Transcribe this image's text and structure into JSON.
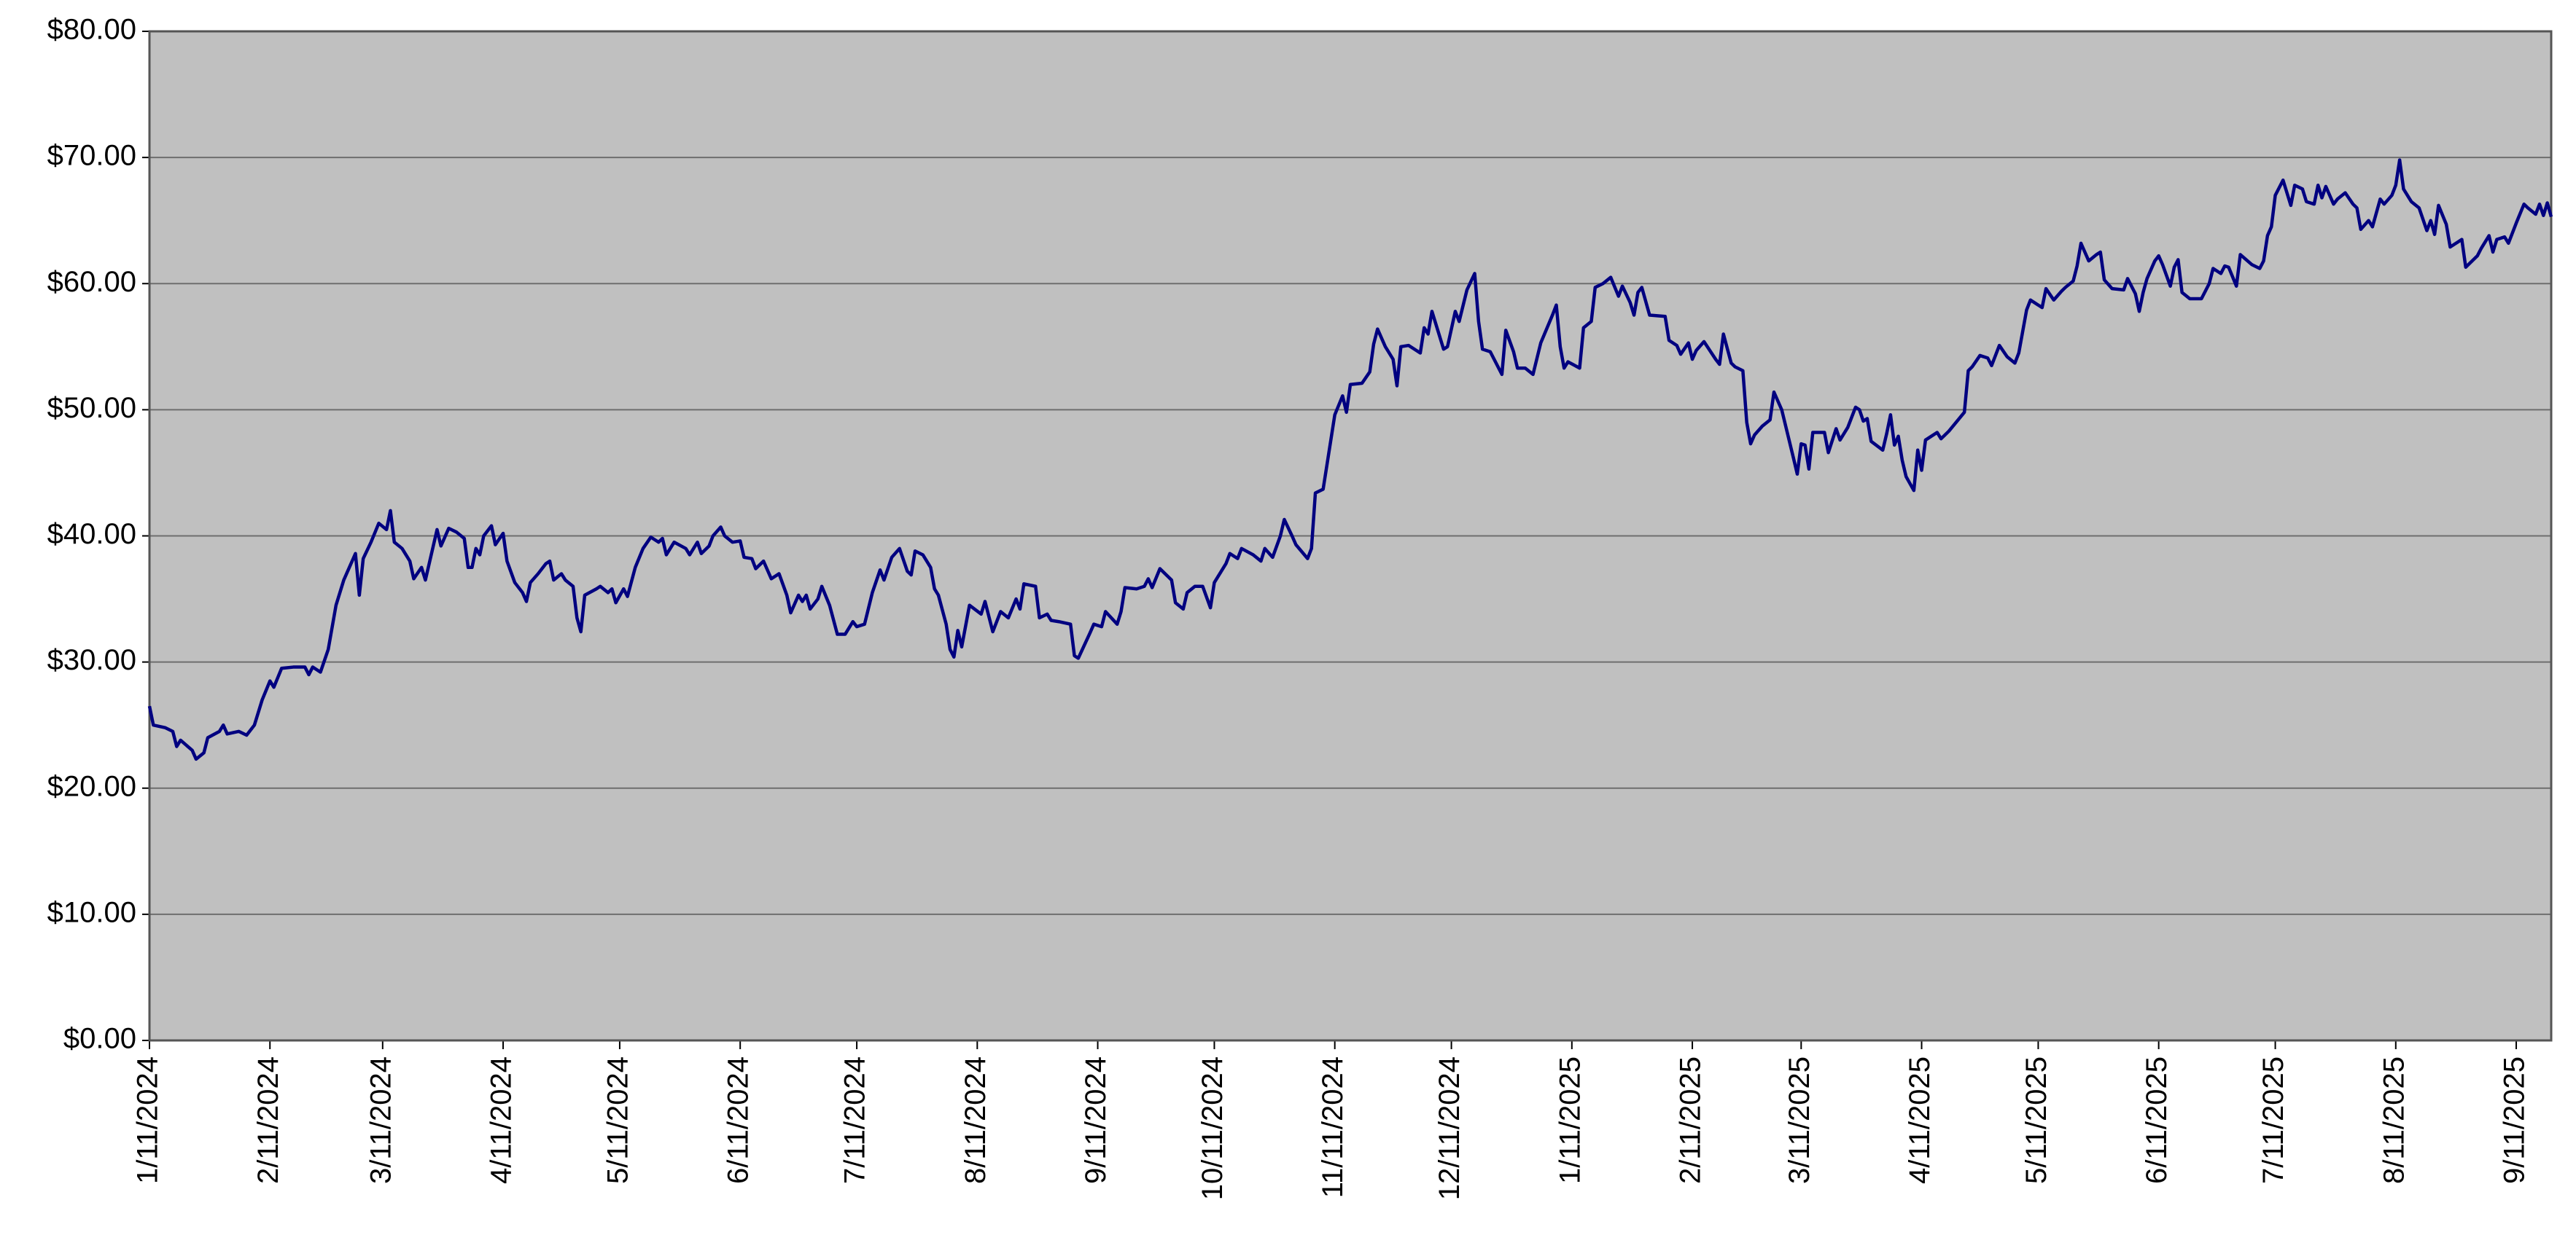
{
  "chart_data": {
    "type": "line",
    "color": "#000080",
    "plot_background": "#c0c0c0",
    "grid": true,
    "ylim": [
      0,
      80
    ],
    "yticks": [
      {
        "value": 0,
        "label": "$0.00"
      },
      {
        "value": 10,
        "label": "$10.00"
      },
      {
        "value": 20,
        "label": "$20.00"
      },
      {
        "value": 30,
        "label": "$30.00"
      },
      {
        "value": 40,
        "label": "$40.00"
      },
      {
        "value": 50,
        "label": "$50.00"
      },
      {
        "value": 60,
        "label": "$60.00"
      },
      {
        "value": 70,
        "label": "$70.00"
      },
      {
        "value": 80,
        "label": "$80.00"
      }
    ],
    "xlim": [
      "2024-01-11",
      "2025-09-20"
    ],
    "xticks": [
      {
        "value": "2024-01-11",
        "label": "1/11/2024"
      },
      {
        "value": "2024-02-11",
        "label": "2/11/2024"
      },
      {
        "value": "2024-03-11",
        "label": "3/11/2024"
      },
      {
        "value": "2024-04-11",
        "label": "4/11/2024"
      },
      {
        "value": "2024-05-11",
        "label": "5/11/2024"
      },
      {
        "value": "2024-06-11",
        "label": "6/11/2024"
      },
      {
        "value": "2024-07-11",
        "label": "7/11/2024"
      },
      {
        "value": "2024-08-11",
        "label": "8/11/2024"
      },
      {
        "value": "2024-09-11",
        "label": "9/11/2024"
      },
      {
        "value": "2024-10-11",
        "label": "10/11/2024"
      },
      {
        "value": "2024-11-11",
        "label": "11/11/2024"
      },
      {
        "value": "2024-12-11",
        "label": "12/11/2024"
      },
      {
        "value": "2025-01-11",
        "label": "1/11/2025"
      },
      {
        "value": "2025-02-11",
        "label": "2/11/2025"
      },
      {
        "value": "2025-03-11",
        "label": "3/11/2025"
      },
      {
        "value": "2025-04-11",
        "label": "4/11/2025"
      },
      {
        "value": "2025-05-11",
        "label": "5/11/2025"
      },
      {
        "value": "2025-06-11",
        "label": "6/11/2025"
      },
      {
        "value": "2025-07-11",
        "label": "7/11/2025"
      },
      {
        "value": "2025-08-11",
        "label": "8/11/2025"
      },
      {
        "value": "2025-09-11",
        "label": "9/11/2025"
      }
    ],
    "x": [
      "2024-01-11",
      "2024-01-12",
      "2024-01-15",
      "2024-01-17",
      "2024-01-18",
      "2024-01-19",
      "2024-01-22",
      "2024-01-23",
      "2024-01-25",
      "2024-01-26",
      "2024-01-29",
      "2024-01-30",
      "2024-01-31",
      "2024-02-03",
      "2024-02-05",
      "2024-02-07",
      "2024-02-09",
      "2024-02-11",
      "2024-02-12",
      "2024-02-14",
      "2024-02-17",
      "2024-02-20",
      "2024-02-21",
      "2024-02-22",
      "2024-02-24",
      "2024-02-26",
      "2024-02-28",
      "2024-03-01",
      "2024-03-04",
      "2024-03-05",
      "2024-03-06",
      "2024-03-08",
      "2024-03-10",
      "2024-03-12",
      "2024-03-13",
      "2024-03-14",
      "2024-03-16",
      "2024-03-18",
      "2024-03-19",
      "2024-03-21",
      "2024-03-22",
      "2024-03-25",
      "2024-03-26",
      "2024-03-28",
      "2024-03-30",
      "2024-04-01",
      "2024-04-02",
      "2024-04-03",
      "2024-04-04",
      "2024-04-05",
      "2024-04-06",
      "2024-04-08",
      "2024-04-09",
      "2024-04-11",
      "2024-04-12",
      "2024-04-14",
      "2024-04-16",
      "2024-04-17",
      "2024-04-18",
      "2024-04-20",
      "2024-04-22",
      "2024-04-23",
      "2024-04-24",
      "2024-04-26",
      "2024-04-27",
      "2024-04-29",
      "2024-04-30",
      "2024-05-01",
      "2024-05-02",
      "2024-05-05",
      "2024-05-06",
      "2024-05-08",
      "2024-05-09",
      "2024-05-10",
      "2024-05-12",
      "2024-05-13",
      "2024-05-15",
      "2024-05-17",
      "2024-05-19",
      "2024-05-21",
      "2024-05-22",
      "2024-05-23",
      "2024-05-25",
      "2024-05-28",
      "2024-05-29",
      "2024-05-31",
      "2024-06-01",
      "2024-06-03",
      "2024-06-04",
      "2024-06-06",
      "2024-06-07",
      "2024-06-09",
      "2024-06-11",
      "2024-06-12",
      "2024-06-14",
      "2024-06-15",
      "2024-06-17",
      "2024-06-19",
      "2024-06-21",
      "2024-06-23",
      "2024-06-24",
      "2024-06-26",
      "2024-06-27",
      "2024-06-28",
      "2024-06-29",
      "2024-07-01",
      "2024-07-02",
      "2024-07-04",
      "2024-07-06",
      "2024-07-08",
      "2024-07-10",
      "2024-07-11",
      "2024-07-13",
      "2024-07-15",
      "2024-07-17",
      "2024-07-18",
      "2024-07-20",
      "2024-07-22",
      "2024-07-24",
      "2024-07-25",
      "2024-07-26",
      "2024-07-28",
      "2024-07-30",
      "2024-07-31",
      "2024-08-01",
      "2024-08-03",
      "2024-08-04",
      "2024-08-05",
      "2024-08-06",
      "2024-08-07",
      "2024-08-09",
      "2024-08-12",
      "2024-08-13",
      "2024-08-15",
      "2024-08-17",
      "2024-08-19",
      "2024-08-21",
      "2024-08-22",
      "2024-08-23",
      "2024-08-26",
      "2024-08-27",
      "2024-08-29",
      "2024-08-30",
      "2024-09-01",
      "2024-09-04",
      "2024-09-05",
      "2024-09-06",
      "2024-09-09",
      "2024-09-10",
      "2024-09-12",
      "2024-09-13",
      "2024-09-16",
      "2024-09-17",
      "2024-09-18",
      "2024-09-21",
      "2024-09-23",
      "2024-09-24",
      "2024-09-25",
      "2024-09-27",
      "2024-09-30",
      "2024-10-01",
      "2024-10-03",
      "2024-10-04",
      "2024-10-06",
      "2024-10-08",
      "2024-10-10",
      "2024-10-11",
      "2024-10-14",
      "2024-10-15",
      "2024-10-17",
      "2024-10-18",
      "2024-10-21",
      "2024-10-23",
      "2024-10-24",
      "2024-10-26",
      "2024-10-28",
      "2024-10-29",
      "2024-10-31",
      "2024-11-01",
      "2024-11-04",
      "2024-11-05",
      "2024-11-06",
      "2024-11-08",
      "2024-11-11",
      "2024-11-13",
      "2024-11-14",
      "2024-11-15",
      "2024-11-18",
      "2024-11-20",
      "2024-11-21",
      "2024-11-22",
      "2024-11-24",
      "2024-11-26",
      "2024-11-27",
      "2024-11-28",
      "2024-11-30",
      "2024-12-03",
      "2024-12-04",
      "2024-12-05",
      "2024-12-06",
      "2024-12-09",
      "2024-12-10",
      "2024-12-12",
      "2024-12-13",
      "2024-12-15",
      "2024-12-17",
      "2024-12-18",
      "2024-12-19",
      "2024-12-21",
      "2024-12-23",
      "2024-12-24",
      "2024-12-25",
      "2024-12-27",
      "2024-12-28",
      "2024-12-30",
      "2025-01-01",
      "2025-01-03",
      "2025-01-06",
      "2025-01-07",
      "2025-01-08",
      "2025-01-09",
      "2025-01-10",
      "2025-01-13",
      "2025-01-14",
      "2025-01-16",
      "2025-01-17",
      "2025-01-19",
      "2025-01-21",
      "2025-01-23",
      "2025-01-24",
      "2025-01-26",
      "2025-01-27",
      "2025-01-28",
      "2025-01-29",
      "2025-01-31",
      "2025-02-04",
      "2025-02-05",
      "2025-02-07",
      "2025-02-08",
      "2025-02-10",
      "2025-02-11",
      "2025-02-12",
      "2025-02-14",
      "2025-02-17",
      "2025-02-18",
      "2025-02-19",
      "2025-02-21",
      "2025-02-22",
      "2025-02-24",
      "2025-02-25",
      "2025-02-26",
      "2025-02-27",
      "2025-03-01",
      "2025-03-03",
      "2025-03-04",
      "2025-03-06",
      "2025-03-09",
      "2025-03-10",
      "2025-03-11",
      "2025-03-12",
      "2025-03-13",
      "2025-03-14",
      "2025-03-17",
      "2025-03-18",
      "2025-03-20",
      "2025-03-21",
      "2025-03-23",
      "2025-03-25",
      "2025-03-26",
      "2025-03-27",
      "2025-03-28",
      "2025-03-29",
      "2025-04-01",
      "2025-04-02",
      "2025-04-03",
      "2025-04-04",
      "2025-04-05",
      "2025-04-06",
      "2025-04-07",
      "2025-04-09",
      "2025-04-10",
      "2025-04-11",
      "2025-04-12",
      "2025-04-15",
      "2025-04-16",
      "2025-04-18",
      "2025-04-22",
      "2025-04-23",
      "2025-04-24",
      "2025-04-26",
      "2025-04-28",
      "2025-04-29",
      "2025-05-01",
      "2025-05-03",
      "2025-05-05",
      "2025-05-06",
      "2025-05-08",
      "2025-05-09",
      "2025-05-12",
      "2025-05-13",
      "2025-05-15",
      "2025-05-17",
      "2025-05-18",
      "2025-05-20",
      "2025-05-21",
      "2025-05-22",
      "2025-05-24",
      "2025-05-26",
      "2025-05-27",
      "2025-05-28",
      "2025-05-30",
      "2025-06-02",
      "2025-06-03",
      "2025-06-05",
      "2025-06-06",
      "2025-06-07",
      "2025-06-08",
      "2025-06-10",
      "2025-06-11",
      "2025-06-12",
      "2025-06-14",
      "2025-06-15",
      "2025-06-16",
      "2025-06-17",
      "2025-06-19",
      "2025-06-22",
      "2025-06-24",
      "2025-06-25",
      "2025-06-27",
      "2025-06-28",
      "2025-06-29",
      "2025-07-01",
      "2025-07-02",
      "2025-07-05",
      "2025-07-07",
      "2025-07-08",
      "2025-07-09",
      "2025-07-10",
      "2025-07-11",
      "2025-07-13",
      "2025-07-15",
      "2025-07-16",
      "2025-07-18",
      "2025-07-19",
      "2025-07-21",
      "2025-07-22",
      "2025-07-23",
      "2025-07-24",
      "2025-07-26",
      "2025-07-27",
      "2025-07-29",
      "2025-07-31",
      "2025-08-01",
      "2025-08-02",
      "2025-08-04",
      "2025-08-05",
      "2025-08-07",
      "2025-08-08",
      "2025-08-10",
      "2025-08-11",
      "2025-08-12",
      "2025-08-13",
      "2025-08-15",
      "2025-08-17",
      "2025-08-19",
      "2025-08-20",
      "2025-08-21",
      "2025-08-22",
      "2025-08-24",
      "2025-08-25",
      "2025-08-27",
      "2025-08-28",
      "2025-08-29",
      "2025-09-01",
      "2025-09-02",
      "2025-09-04",
      "2025-09-05",
      "2025-09-06",
      "2025-09-08",
      "2025-09-09",
      "2025-09-11",
      "2025-09-13",
      "2025-09-14",
      "2025-09-16",
      "2025-09-17",
      "2025-09-18",
      "2025-09-19",
      "2025-09-20"
    ],
    "values": [
      26.5,
      25,
      24.8,
      24.5,
      23.3,
      23.8,
      23,
      22.3,
      22.8,
      24,
      24.5,
      25,
      24.3,
      24.5,
      24.2,
      25,
      27,
      28.5,
      28,
      29.5,
      29.6,
      29.6,
      29,
      29.6,
      29.2,
      31,
      34.5,
      36.5,
      38.6,
      35.3,
      38.2,
      39.5,
      41,
      40.5,
      42,
      39.5,
      39,
      38,
      36.6,
      37.5,
      36.5,
      40.5,
      39.2,
      40.6,
      40.3,
      39.8,
      37.5,
      37.5,
      39,
      38.5,
      40,
      40.8,
      39.3,
      40.2,
      38,
      36.3,
      35.5,
      34.8,
      36.3,
      37,
      37.8,
      38,
      36.5,
      37,
      36.5,
      36,
      33.5,
      32.4,
      35.3,
      35.8,
      36,
      35.5,
      35.8,
      34.7,
      35.8,
      35.2,
      37.5,
      39,
      39.9,
      39.5,
      39.8,
      38.5,
      39.5,
      39,
      38.5,
      39.5,
      38.6,
      39.2,
      40,
      40.7,
      40,
      39.5,
      39.6,
      38.3,
      38.2,
      37.4,
      38,
      36.6,
      37,
      35.3,
      33.9,
      35.3,
      34.8,
      35.3,
      34.2,
      35,
      36,
      34.5,
      32.2,
      32.2,
      33.2,
      32.8,
      33,
      35.5,
      37.3,
      36.5,
      38.3,
      39,
      37.2,
      36.9,
      38.8,
      38.5,
      37.5,
      35.8,
      35.3,
      33,
      31,
      30.4,
      32.5,
      31.2,
      34.5,
      33.8,
      34.8,
      32.4,
      34,
      33.5,
      35,
      34.2,
      36.2,
      36,
      33.5,
      33.8,
      33.3,
      33.2,
      33,
      30.5,
      30.3,
      32.3,
      33,
      32.8,
      34,
      33,
      34,
      35.9,
      35.8,
      36,
      36.6,
      35.9,
      37.4,
      36.5,
      34.7,
      34.2,
      35.5,
      36,
      36,
      34.3,
      36.3,
      37.8,
      38.6,
      38.2,
      39,
      38.5,
      38,
      39,
      38.3,
      40,
      41.3,
      40,
      39.3,
      38.2,
      39,
      43.4,
      43.7,
      49.6,
      51.1,
      49.8,
      52,
      52.1,
      53,
      55.2,
      56.4,
      55,
      54,
      51.9,
      55,
      55.1,
      54.5,
      56.5,
      56,
      57.8,
      54.8,
      55,
      57.8,
      57,
      59.5,
      60.8,
      57,
      54.8,
      54.6,
      53.4,
      52.8,
      56.3,
      54.6,
      53.3,
      53.3,
      52.8,
      55.3,
      57.5,
      58.3,
      55,
      53.3,
      53.8,
      53.3,
      56.5,
      57,
      59.7,
      60,
      60.5,
      59,
      59.8,
      58.5,
      57.5,
      59.3,
      59.7,
      57.5,
      57.4,
      55.5,
      55.1,
      54.4,
      55.3,
      54,
      54.7,
      55.4,
      54,
      53.6,
      56,
      53.7,
      53.4,
      53.1,
      49,
      47.3,
      48,
      48.7,
      49.2,
      51.4,
      50,
      46.2,
      44.9,
      47.3,
      47.2,
      45.3,
      48.2,
      48.2,
      46.6,
      48.5,
      47.6,
      48.6,
      50.2,
      50,
      49.1,
      49.3,
      47.5,
      46.8,
      48.1,
      49.6,
      47.2,
      47.9,
      46,
      44.7,
      43.6,
      46.8,
      45.2,
      47.6,
      48.2,
      47.7,
      48.3,
      49.8,
      53.1,
      53.4,
      54.3,
      54.1,
      53.5,
      55.1,
      54.2,
      53.7,
      54.5,
      57.9,
      58.7,
      58.1,
      59.6,
      58.7,
      59.4,
      59.7,
      60.2,
      61.4,
      63.2,
      61.8,
      62.3,
      62.5,
      60.3,
      59.6,
      59.5,
      60.4,
      59.2,
      57.8,
      59.3,
      60.4,
      61.8,
      62.2,
      61.5,
      59.8,
      61.3,
      61.9,
      59.3,
      58.8,
      58.8,
      60,
      61.2,
      60.8,
      61.4,
      61.3,
      59.8,
      62.3,
      61.5,
      61.2,
      61.8,
      63.8,
      64.5,
      67,
      68.2,
      66.2,
      67.8,
      67.5,
      66.5,
      66.3,
      67.8,
      66.8,
      67.7,
      66.3,
      66.7,
      67.2,
      66.3,
      66,
      64.3,
      65,
      64.5,
      66.7,
      66.3,
      67,
      67.8,
      69.8,
      67.5,
      66.5,
      66,
      64.2,
      65,
      63.9,
      66.2,
      64.7,
      62.9,
      63.3,
      63.5,
      61.3,
      62.2,
      62.8,
      63.8,
      62.5,
      63.5,
      63.7,
      63.2,
      64.8,
      66.3,
      66,
      65.5,
      66.3,
      65.4,
      66.4,
      65.3
    ]
  }
}
